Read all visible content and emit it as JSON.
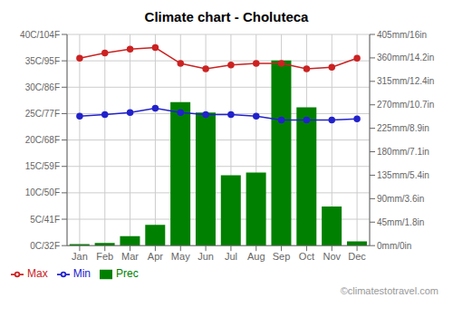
{
  "chart_data": {
    "type": "bar",
    "title": "Climate chart - Choluteca",
    "categories": [
      "Jan",
      "Feb",
      "Mar",
      "Apr",
      "May",
      "Jun",
      "Jul",
      "Aug",
      "Sep",
      "Oct",
      "Nov",
      "Dec"
    ],
    "series": [
      {
        "name": "Prec",
        "type": "bar",
        "axis": "y2",
        "color": "#008000",
        "values": [
          3,
          5,
          18,
          40,
          275,
          255,
          135,
          140,
          355,
          265,
          75,
          8
        ]
      },
      {
        "name": "Min",
        "type": "line",
        "color": "#2222cc",
        "marker": "circle",
        "values": [
          24.5,
          24.8,
          25.2,
          26.0,
          25.2,
          24.8,
          24.8,
          24.5,
          23.8,
          23.8,
          23.8,
          24.0
        ]
      },
      {
        "name": "Max",
        "type": "line",
        "color": "#cc2222",
        "marker": "circle",
        "values": [
          35.5,
          36.5,
          37.2,
          37.5,
          34.5,
          33.5,
          34.2,
          34.5,
          34.5,
          33.5,
          33.8,
          35.5
        ]
      }
    ],
    "ylim": [
      0,
      40
    ],
    "yticks": [
      {
        "value": 0,
        "label": "0C/32F"
      },
      {
        "value": 5,
        "label": "5C/41F"
      },
      {
        "value": 10,
        "label": "10C/50F"
      },
      {
        "value": 15,
        "label": "15C/59F"
      },
      {
        "value": 20,
        "label": "20C/68F"
      },
      {
        "value": 25,
        "label": "25C/77F"
      },
      {
        "value": 30,
        "label": "30C/86F"
      },
      {
        "value": 35,
        "label": "35C/95F"
      },
      {
        "value": 40,
        "label": "40C/104F"
      }
    ],
    "y2lim": [
      0,
      405
    ],
    "y2ticks": [
      {
        "value": 0,
        "label": "0mm/0in"
      },
      {
        "value": 45,
        "label": "45mm/1.8in"
      },
      {
        "value": 90,
        "label": "90mm/3.6in"
      },
      {
        "value": 135,
        "label": "135mm/5.4in"
      },
      {
        "value": 180,
        "label": "180mm/7.1in"
      },
      {
        "value": 225,
        "label": "225mm/8.9in"
      },
      {
        "value": 270,
        "label": "270mm/10.7in"
      },
      {
        "value": 315,
        "label": "315mm/12.4in"
      },
      {
        "value": 360,
        "label": "360mm/14.2in"
      },
      {
        "value": 405,
        "label": "405mm/16in"
      }
    ],
    "grid": true,
    "legend": "bottom",
    "annotations": [
      "©climatestotravel.com"
    ]
  }
}
